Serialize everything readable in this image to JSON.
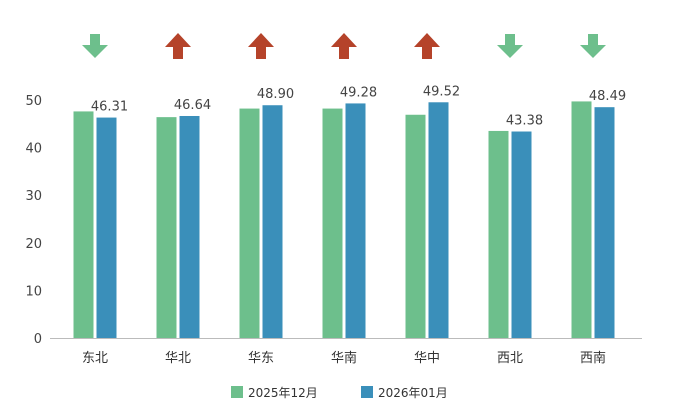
{
  "chart_data": {
    "type": "bar",
    "categories": [
      "东北",
      "华北",
      "华东",
      "华南",
      "华中",
      "西北",
      "西南"
    ],
    "series": [
      {
        "name": "2025年12月",
        "values": [
          47.6,
          46.4,
          48.2,
          48.2,
          46.9,
          43.5,
          49.7
        ]
      },
      {
        "name": "2026年01月",
        "values": [
          46.31,
          46.64,
          48.9,
          49.28,
          49.52,
          43.38,
          48.49
        ]
      }
    ],
    "data_labels": [
      "46.31",
      "46.64",
      "48.90",
      "49.28",
      "49.52",
      "43.38",
      "48.49"
    ],
    "trend_arrows": [
      "down",
      "up",
      "up",
      "up",
      "up",
      "down",
      "down"
    ],
    "ylim": [
      0,
      50
    ],
    "yticks": [
      0,
      10,
      20,
      30,
      40,
      50
    ],
    "grid": false,
    "legend_position": "bottom",
    "colors": {
      "series_1": "#6dbf8c",
      "series_2": "#3a8fba",
      "arrow_up": "#b5432a",
      "arrow_down": "#6dbf8c",
      "axis": "#bbbbbb"
    }
  }
}
